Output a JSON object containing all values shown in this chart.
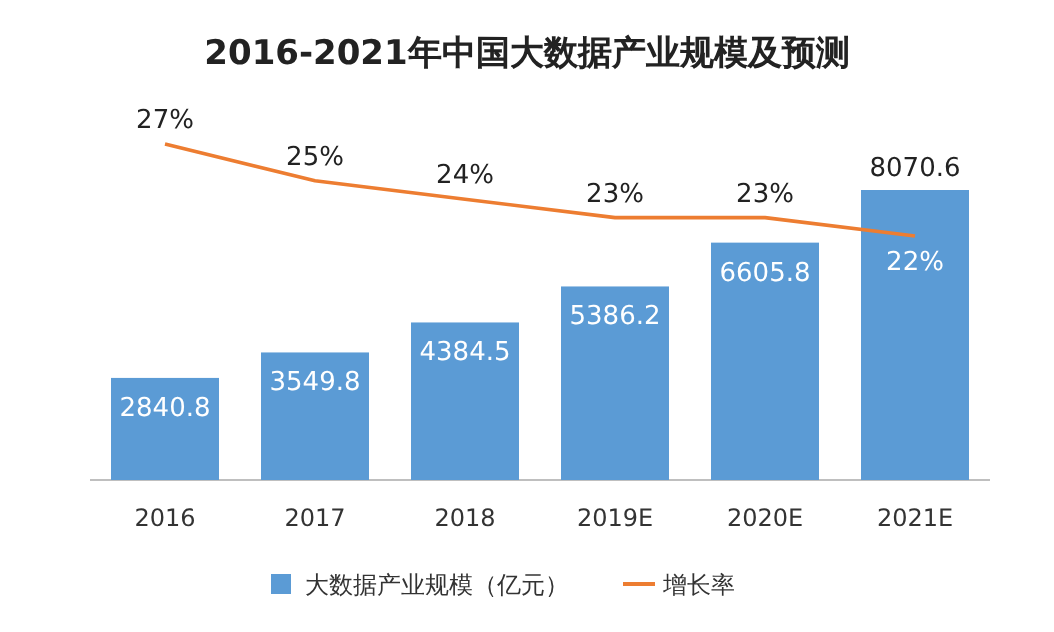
{
  "chart_data": {
    "type": "bar",
    "title": "2016-2021年中国大数据产业规模及预测",
    "categories": [
      "2016",
      "2017",
      "2018",
      "2019E",
      "2020E",
      "2021E"
    ],
    "series": [
      {
        "name": "大数据产业规模（亿元）",
        "color": "#5b9bd5",
        "values": [
          2840.8,
          3549.8,
          4384.5,
          5386.2,
          6605.8,
          8070.6
        ],
        "value_labels": [
          "2840.8",
          "3549.8",
          "4384.5",
          "5386.2",
          "6605.8",
          "8070.6"
        ]
      },
      {
        "name": "增长率",
        "type": "line",
        "axis": "y2",
        "color": "#ed7d31",
        "values": [
          27,
          25,
          24,
          23,
          23,
          22
        ],
        "value_labels": [
          "27%",
          "25%",
          "24%",
          "23%",
          "23%",
          "22%"
        ]
      }
    ],
    "legend": "bottom",
    "marker": "none"
  }
}
